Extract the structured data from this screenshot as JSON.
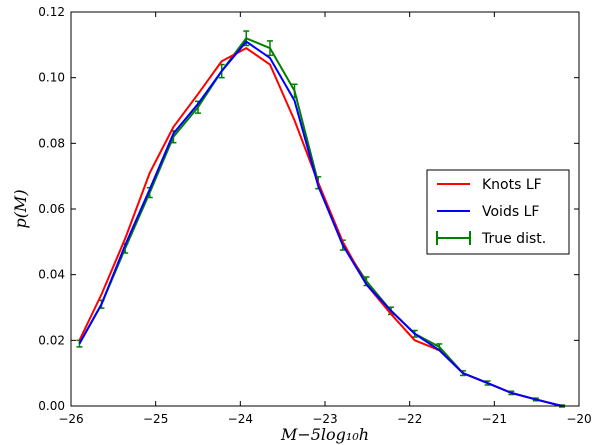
{
  "chart_data": {
    "type": "line",
    "title": "",
    "xlabel": "M−5log₁₀h",
    "ylabel": "p(M)",
    "xlim": [
      -26,
      -20
    ],
    "ylim": [
      0.0,
      0.12
    ],
    "x_ticks": [
      -26,
      -25,
      -24,
      -23,
      -22,
      -21,
      -20
    ],
    "x_tick_labels": [
      "−26",
      "−25",
      "−24",
      "−23",
      "−22",
      "−21",
      "−20"
    ],
    "y_ticks": [
      0.0,
      0.02,
      0.04,
      0.06,
      0.08,
      0.1,
      0.12
    ],
    "y_tick_labels": [
      "0.00",
      "0.02",
      "0.04",
      "0.06",
      "0.08",
      "0.10",
      "0.12"
    ],
    "legend_position": "right",
    "series": [
      {
        "name": "Knots LF",
        "color": "#ff0000",
        "x": [
          -25.9,
          -25.64,
          -25.36,
          -25.07,
          -24.79,
          -24.5,
          -24.22,
          -23.93,
          -23.65,
          -23.36,
          -23.08,
          -22.79,
          -22.51,
          -22.22,
          -21.94,
          -21.65,
          -21.37,
          -21.08,
          -20.8,
          -20.51,
          -20.2
        ],
        "y": [
          0.02,
          0.034,
          0.051,
          0.071,
          0.085,
          0.095,
          0.105,
          0.109,
          0.104,
          0.087,
          0.068,
          0.05,
          0.037,
          0.028,
          0.02,
          0.017,
          0.01,
          0.007,
          0.004,
          0.002,
          0.0
        ]
      },
      {
        "name": "Voids LF",
        "color": "#0000ff",
        "x": [
          -25.9,
          -25.64,
          -25.36,
          -25.07,
          -24.79,
          -24.5,
          -24.22,
          -23.93,
          -23.65,
          -23.36,
          -23.08,
          -22.79,
          -22.51,
          -22.22,
          -21.94,
          -21.65,
          -21.37,
          -21.08,
          -20.8,
          -20.51,
          -20.2
        ],
        "y": [
          0.019,
          0.031,
          0.049,
          0.066,
          0.083,
          0.092,
          0.102,
          0.111,
          0.106,
          0.093,
          0.067,
          0.049,
          0.037,
          0.029,
          0.022,
          0.017,
          0.01,
          0.007,
          0.004,
          0.002,
          0.0
        ]
      },
      {
        "name": "True dist.",
        "color": "#008000",
        "errorbars": true,
        "x": [
          -25.9,
          -25.64,
          -25.36,
          -25.07,
          -24.79,
          -24.5,
          -24.22,
          -23.93,
          -23.65,
          -23.36,
          -23.08,
          -22.79,
          -22.51,
          -22.22,
          -21.94,
          -21.65,
          -21.37,
          -21.08,
          -20.8,
          -20.51,
          -20.2
        ],
        "y": [
          0.019,
          0.031,
          0.048,
          0.065,
          0.082,
          0.091,
          0.102,
          0.112,
          0.109,
          0.096,
          0.068,
          0.049,
          0.038,
          0.029,
          0.022,
          0.018,
          0.01,
          0.007,
          0.004,
          0.002,
          0.0
        ],
        "yerr": [
          0.001,
          0.0012,
          0.0014,
          0.0015,
          0.0018,
          0.0018,
          0.002,
          0.0022,
          0.0022,
          0.002,
          0.0018,
          0.0015,
          0.0013,
          0.0011,
          0.001,
          0.0009,
          0.0007,
          0.0006,
          0.0005,
          0.0004,
          0.0003
        ]
      }
    ]
  }
}
